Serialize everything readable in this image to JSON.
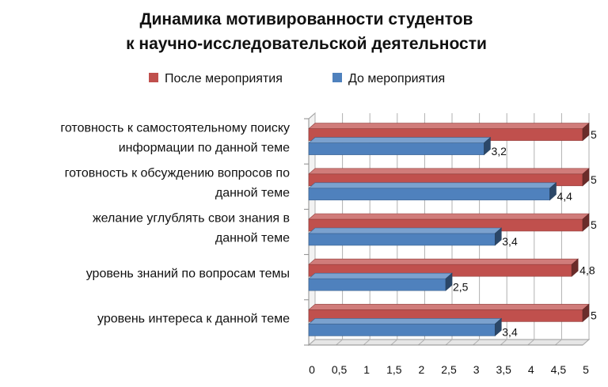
{
  "chart_data": {
    "type": "bar",
    "orientation": "horizontal",
    "title_lines": [
      "Динамика мотивированности студентов",
      "к научно-исследовательской деятельности"
    ],
    "legend_position": "top",
    "categories": [
      [
        "готовность к самостоятельному поиску",
        "информации  по данной теме"
      ],
      [
        "готовность к обсуждению вопросов по",
        "данной теме"
      ],
      [
        "желание углублять свои знания в",
        "данной теме"
      ],
      [
        "уровень знаний по вопросам темы"
      ],
      [
        "уровень интереса к данной теме"
      ]
    ],
    "series": [
      {
        "name": "После мероприятия",
        "color": "#C0504D",
        "values": [
          5,
          5,
          5,
          4.8,
          5
        ],
        "labels": [
          "5",
          "5",
          "5",
          "4,8",
          "5"
        ]
      },
      {
        "name": "До мероприятия",
        "color": "#4F81BD",
        "values": [
          3.2,
          4.4,
          3.4,
          2.5,
          3.4
        ],
        "labels": [
          "3,2",
          "4,4",
          "3,4",
          "2,5",
          "3,4"
        ]
      }
    ],
    "xlim": [
      0,
      5
    ],
    "x_ticks": [
      0,
      0.5,
      1,
      1.5,
      2,
      2.5,
      3,
      3.5,
      4,
      4.5,
      5
    ],
    "x_tick_labels": [
      "0",
      "0,5",
      "1",
      "1,5",
      "2",
      "2,5",
      "3",
      "3,5",
      "4",
      "4,5",
      "5"
    ],
    "grid": true,
    "style": "3d"
  }
}
